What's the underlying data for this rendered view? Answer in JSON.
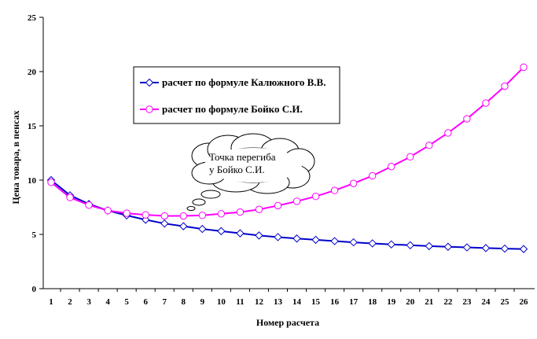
{
  "chart_data": {
    "type": "line",
    "title": "",
    "xlabel": "Номер расчета",
    "ylabel": "Цена товара, в пенсах",
    "ylim": [
      0,
      25
    ],
    "yticks": [
      0,
      5,
      10,
      15,
      20,
      25
    ],
    "grid": false,
    "legend_position": "upper-center",
    "x": [
      1,
      2,
      3,
      4,
      5,
      6,
      7,
      8,
      9,
      10,
      11,
      12,
      13,
      14,
      15,
      16,
      17,
      18,
      19,
      20,
      21,
      22,
      23,
      24,
      25,
      26
    ],
    "series": [
      {
        "name": "расчет по формуле Калюжного В.В.",
        "color": "#0000CC",
        "marker": "diamond",
        "values": [
          10.0,
          8.6,
          7.8,
          7.2,
          6.75,
          6.35,
          6.0,
          5.75,
          5.5,
          5.3,
          5.1,
          4.9,
          4.75,
          4.62,
          4.5,
          4.38,
          4.27,
          4.17,
          4.08,
          4.0,
          3.92,
          3.86,
          3.8,
          3.74,
          3.69,
          3.65
        ]
      },
      {
        "name": "расчет по формуле Бойко С.И.",
        "color": "#FF00FF",
        "marker": "circle",
        "values": [
          9.8,
          8.4,
          7.7,
          7.2,
          6.95,
          6.8,
          6.7,
          6.7,
          6.75,
          6.9,
          7.05,
          7.3,
          7.65,
          8.05,
          8.5,
          9.05,
          9.7,
          10.4,
          11.25,
          12.15,
          13.2,
          14.35,
          15.65,
          17.1,
          18.65,
          20.4
        ]
      }
    ],
    "annotation": {
      "text_line1": "Точка перегиба",
      "text_line2": "у Бойко С.И."
    }
  }
}
